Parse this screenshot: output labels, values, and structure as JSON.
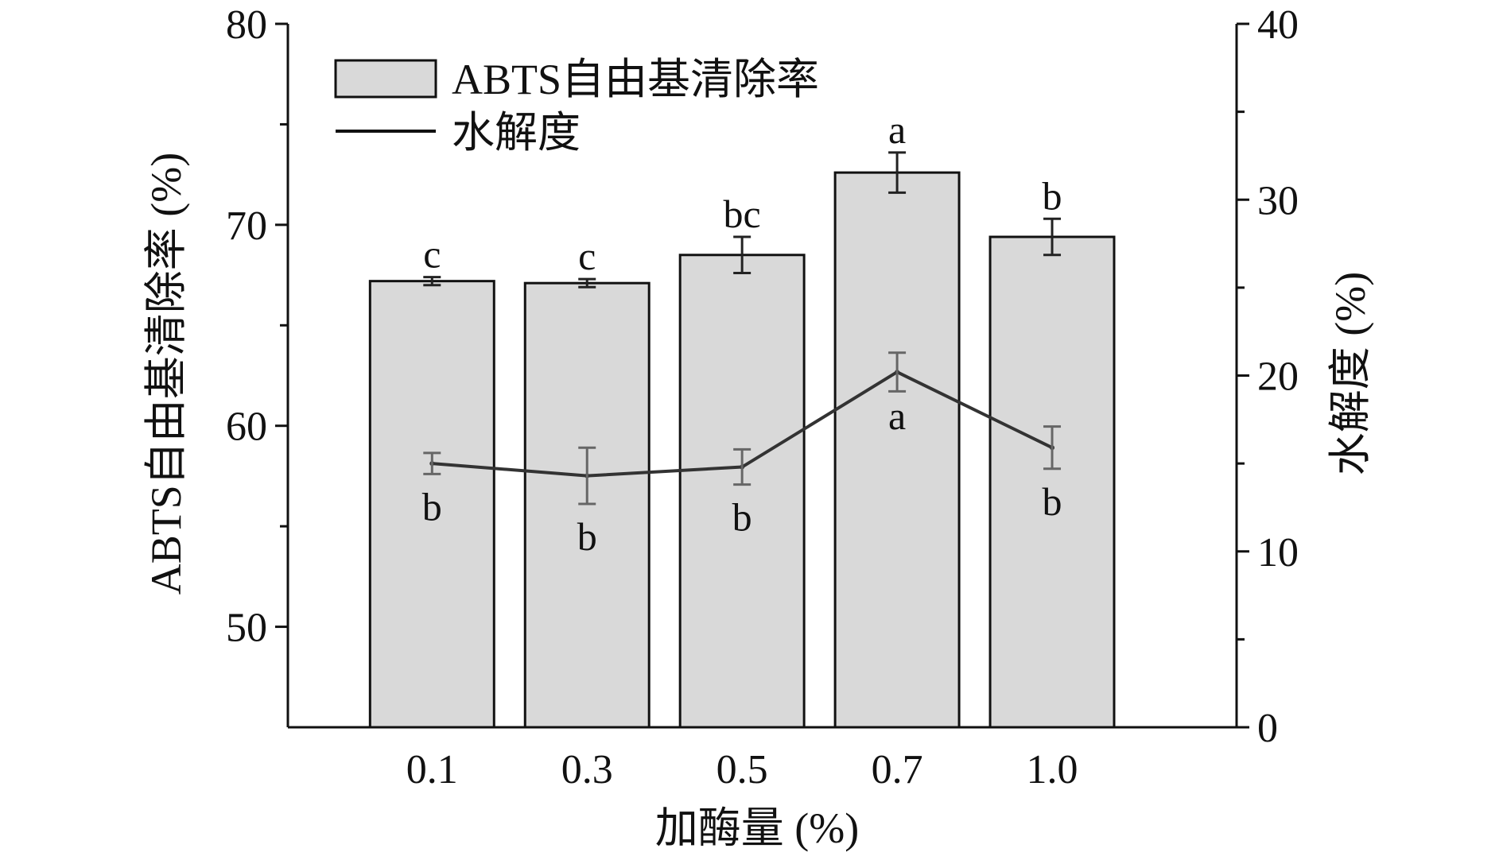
{
  "chart_data": {
    "type": "bar",
    "categories": [
      "0.1",
      "0.3",
      "0.5",
      "0.7",
      "1.0"
    ],
    "xlabel": "加酶量 (%)",
    "ylabel_left": "ABTS自由基清除率 (%)",
    "ylabel_right": "水解度 (%)",
    "ylim_left": [
      45,
      80
    ],
    "ylim_right": [
      0,
      40
    ],
    "yticks_left": [
      "50",
      "60",
      "70",
      "80"
    ],
    "yticks_right": [
      "0",
      "10",
      "20",
      "30",
      "40"
    ],
    "grid": false,
    "legend_position": "top-left",
    "series": [
      {
        "name": "ABTS自由基清除率",
        "kind": "bar",
        "axis": "left",
        "color": "#d9d9d9",
        "edge_color": "#111111",
        "values": [
          67.2,
          67.1,
          68.5,
          72.6,
          69.4
        ],
        "errors": [
          0.2,
          0.2,
          0.9,
          1.0,
          0.9
        ],
        "significance": [
          "c",
          "c",
          "bc",
          "a",
          "b"
        ]
      },
      {
        "name": "水解度",
        "kind": "line",
        "axis": "right",
        "color": "#333333",
        "values": [
          15.0,
          14.3,
          14.8,
          20.2,
          15.9
        ],
        "errors": [
          0.6,
          1.6,
          1.0,
          1.1,
          1.2
        ],
        "significance": [
          "b",
          "b",
          "b",
          "a",
          "b"
        ]
      }
    ]
  }
}
